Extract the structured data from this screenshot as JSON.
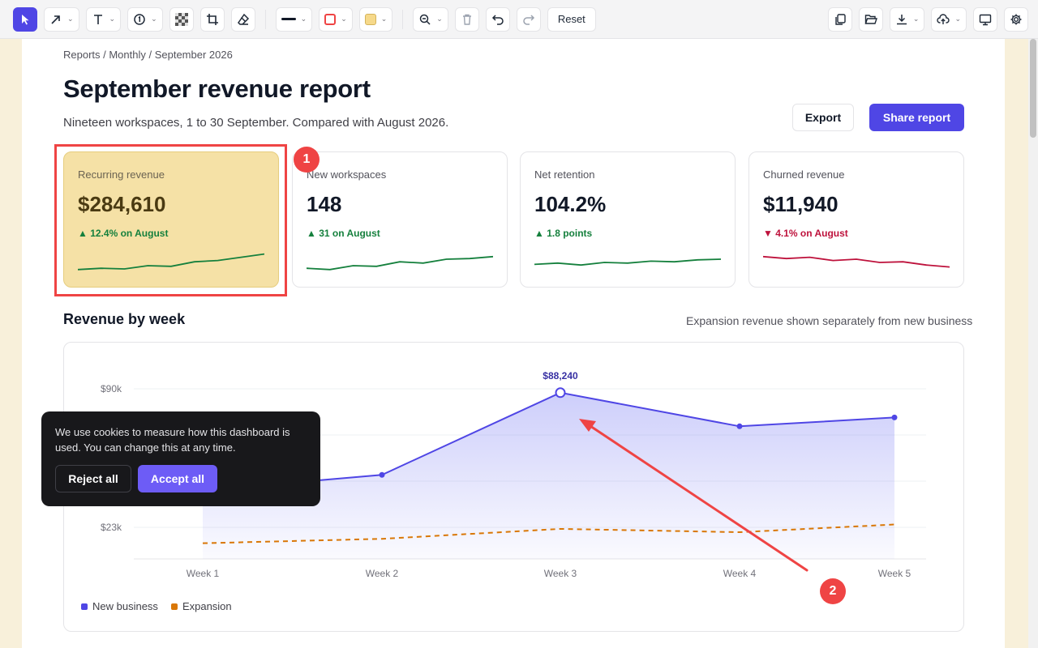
{
  "toolbar": {
    "reset_label": "Reset",
    "tools": [
      {
        "icon": "cursor-icon",
        "active": true
      },
      {
        "icon": "arrow-icon"
      },
      {
        "icon": "text-icon"
      },
      {
        "icon": "number-marker-icon"
      },
      {
        "icon": "pixelate-icon"
      },
      {
        "icon": "crop-icon"
      },
      {
        "icon": "eraser-icon"
      },
      {
        "icon": "line-width-icon"
      },
      {
        "icon": "stroke-color-icon",
        "color": "#ef4444"
      },
      {
        "icon": "fill-color-icon",
        "color": "#f6d98a"
      },
      {
        "icon": "zoom-out-icon"
      },
      {
        "icon": "trash-icon"
      },
      {
        "icon": "undo-icon"
      },
      {
        "icon": "redo-icon"
      }
    ],
    "right_tools": [
      "copy-icon",
      "open-folder-icon",
      "download-icon",
      "upload-cloud-icon",
      "present-icon",
      "settings-icon"
    ]
  },
  "page": {
    "breadcrumb": "Reports / Monthly / September 2026",
    "title": "September revenue report",
    "subtitle": "Nineteen workspaces, 1 to 30 September. Compared with August 2026.",
    "export_label": "Export",
    "share_label": "Share report",
    "accent_color": "#4f46e5"
  },
  "cards": [
    {
      "label": "Recurring revenue",
      "value": "$284,610",
      "delta": "▲ 12.4% on August",
      "trend": "up",
      "highlighted": true,
      "spark": [
        2,
        3,
        2.5,
        5,
        4.5,
        8,
        9,
        11.5,
        14
      ]
    },
    {
      "label": "New workspaces",
      "value": "148",
      "delta": "▲ 31 on August",
      "trend": "up",
      "spark": [
        3,
        2,
        5,
        4.5,
        8,
        7,
        10,
        10.5,
        12
      ]
    },
    {
      "label": "Net retention",
      "value": "104.2%",
      "delta": "▲ 1.8 points",
      "trend": "up",
      "spark": [
        6,
        7,
        5.5,
        7.5,
        7,
        8.5,
        8,
        9.5,
        10
      ]
    },
    {
      "label": "Churned revenue",
      "value": "$11,940",
      "delta": "▼ 4.1% on August",
      "trend": "down",
      "spark": [
        12,
        10.5,
        11.5,
        9,
        10,
        7.5,
        8,
        5.5,
        4
      ]
    }
  ],
  "section": {
    "title": "Revenue by week",
    "note": "Expansion revenue shown separately from new business"
  },
  "chart_data": {
    "type": "line",
    "categories": [
      "Week 1",
      "Week 2",
      "Week 3",
      "Week 4",
      "Week 5"
    ],
    "y_tick_labels": [
      "$90k",
      "$23k"
    ],
    "ylim": [
      12900,
      90000
    ],
    "series": [
      {
        "name": "New business",
        "color": "#4f46e5",
        "values": [
          44000,
          51000,
          88240,
          73000,
          77000
        ],
        "area": true
      },
      {
        "name": "Expansion",
        "color": "#d97706",
        "values": [
          20000,
          22000,
          26500,
          25000,
          28500
        ],
        "dashed": true
      }
    ],
    "annotation": {
      "category": "Week 3",
      "label": "$88,240"
    },
    "grid": true,
    "legend": "bottom-left"
  },
  "cookie": {
    "text": "We use cookies to measure how this dashboard is used. You can change this at any time.",
    "reject_label": "Reject all",
    "accept_label": "Accept all"
  },
  "markers": [
    {
      "number": "1",
      "color": "#ef4444"
    },
    {
      "number": "2",
      "color": "#ef4444"
    }
  ]
}
